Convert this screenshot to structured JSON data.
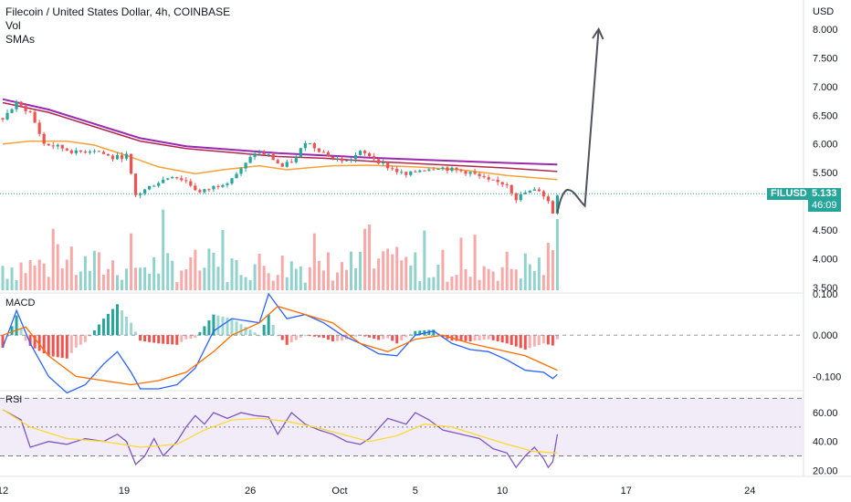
{
  "header": {
    "title": "Filecoin / United States Dollar, 4h, COINBASE",
    "indicator_vol": "Vol",
    "indicator_smas": "SMAs"
  },
  "price_axis": {
    "currency": "USD"
  },
  "price_tag": {
    "symbol": "FILUSD",
    "price": "5.133",
    "countdown": "46:09"
  },
  "panes": {
    "macd_label": "MACD",
    "rsi_label": "RSI"
  },
  "colors": {
    "up": "#26a69a",
    "down": "#ef5350",
    "sma_fast": "#f7a136",
    "sma_mid": "#b2264f",
    "sma_slow": "#9c27b0",
    "macd": "#2962ff",
    "signal": "#ff6d00",
    "rsi": "#7e57c2",
    "rsi_ma": "#fdd835",
    "rsi_band": "#ede7f6",
    "arrow": "#50535e"
  },
  "chart_data": [
    {
      "type": "candlestick",
      "name": "price",
      "x_ticks": [
        "12",
        "19",
        "26",
        "Oct",
        "5",
        "10",
        "17",
        "24"
      ],
      "y_ticks": [
        "8.000",
        "7.500",
        "7.000",
        "6.500",
        "6.000",
        "5.500",
        "5.000",
        "4.500",
        "4.000",
        "3.500"
      ],
      "ylim": [
        3.45,
        8.35
      ],
      "current_price": 5.133,
      "close_path": [
        [
          0,
          6.45
        ],
        [
          3,
          6.7
        ],
        [
          6,
          6.55
        ],
        [
          9,
          6.0
        ],
        [
          12,
          5.95
        ],
        [
          16,
          5.85
        ],
        [
          20,
          5.9
        ],
        [
          24,
          5.75
        ],
        [
          27,
          5.8
        ],
        [
          29,
          5.1
        ],
        [
          33,
          5.3
        ],
        [
          37,
          5.45
        ],
        [
          40,
          5.35
        ],
        [
          43,
          5.15
        ],
        [
          46,
          5.25
        ],
        [
          49,
          5.35
        ],
        [
          52,
          5.55
        ],
        [
          55,
          5.85
        ],
        [
          58,
          5.8
        ],
        [
          61,
          5.6
        ],
        [
          64,
          5.75
        ],
        [
          66,
          6.05
        ],
        [
          69,
          5.9
        ],
        [
          72,
          5.75
        ],
        [
          75,
          5.7
        ],
        [
          78,
          5.85
        ],
        [
          80,
          5.8
        ],
        [
          84,
          5.6
        ],
        [
          88,
          5.45
        ],
        [
          91,
          5.55
        ],
        [
          95,
          5.6
        ],
        [
          98,
          5.55
        ],
        [
          102,
          5.5
        ],
        [
          106,
          5.35
        ],
        [
          110,
          5.3
        ],
        [
          112,
          5.05
        ],
        [
          114,
          5.15
        ],
        [
          117,
          5.2
        ],
        [
          119,
          5.0
        ],
        [
          120,
          4.8
        ],
        [
          121,
          5.133
        ]
      ],
      "n_bars": 122
    },
    {
      "type": "line",
      "name": "SMAs",
      "series": [
        {
          "values": [
            [
              0,
              6.0
            ],
            [
              6,
              6.05
            ],
            [
              14,
              6.05
            ],
            [
              20,
              5.98
            ],
            [
              27,
              5.8
            ],
            [
              34,
              5.6
            ],
            [
              42,
              5.48
            ],
            [
              48,
              5.55
            ],
            [
              56,
              5.62
            ],
            [
              62,
              5.55
            ],
            [
              66,
              5.58
            ],
            [
              72,
              5.62
            ],
            [
              80,
              5.63
            ],
            [
              90,
              5.6
            ],
            [
              100,
              5.55
            ],
            [
              110,
              5.45
            ],
            [
              121,
              5.38
            ]
          ]
        },
        {
          "values": [
            [
              0,
              6.72
            ],
            [
              10,
              6.55
            ],
            [
              20,
              6.3
            ],
            [
              30,
              6.05
            ],
            [
              40,
              5.92
            ],
            [
              50,
              5.85
            ],
            [
              60,
              5.78
            ],
            [
              70,
              5.75
            ],
            [
              80,
              5.7
            ],
            [
              90,
              5.66
            ],
            [
              100,
              5.62
            ],
            [
              110,
              5.58
            ],
            [
              121,
              5.52
            ]
          ]
        },
        {
          "values": [
            [
              0,
              6.78
            ],
            [
              10,
              6.6
            ],
            [
              20,
              6.35
            ],
            [
              30,
              6.1
            ],
            [
              40,
              5.96
            ],
            [
              50,
              5.9
            ],
            [
              60,
              5.84
            ],
            [
              70,
              5.8
            ],
            [
              80,
              5.76
            ],
            [
              90,
              5.73
            ],
            [
              100,
              5.7
            ],
            [
              110,
              5.67
            ],
            [
              121,
              5.64
            ]
          ]
        }
      ]
    },
    {
      "type": "line",
      "name": "projection",
      "values": [
        [
          121,
          4.8
        ],
        [
          123.5,
          5.1
        ],
        [
          127,
          5.0
        ],
        [
          130,
          8.0
        ]
      ]
    },
    {
      "type": "bar",
      "name": "Vol",
      "volume_shape": "random"
    },
    {
      "type": "line",
      "name": "MACD",
      "y_ticks": [
        "0.100",
        "0.000",
        "-0.100"
      ],
      "ylim": [
        -0.13,
        0.1
      ],
      "series": [
        {
          "values": [
            [
              0,
              -0.03
            ],
            [
              3,
              0.06
            ],
            [
              6,
              -0.02
            ],
            [
              10,
              -0.1
            ],
            [
              14,
              -0.14
            ],
            [
              18,
              -0.12
            ],
            [
              22,
              -0.07
            ],
            [
              25,
              -0.04
            ],
            [
              28,
              -0.09
            ],
            [
              30,
              -0.13
            ],
            [
              34,
              -0.13
            ],
            [
              38,
              -0.12
            ],
            [
              42,
              -0.08
            ],
            [
              46,
              0.01
            ],
            [
              50,
              0.04
            ],
            [
              53,
              0.035
            ],
            [
              56,
              0.03
            ],
            [
              58,
              0.1
            ],
            [
              60,
              0.07
            ],
            [
              62,
              0.04
            ],
            [
              66,
              0.05
            ],
            [
              70,
              0.03
            ],
            [
              74,
              0.0
            ],
            [
              78,
              -0.02
            ],
            [
              82,
              -0.045
            ],
            [
              86,
              -0.05
            ],
            [
              90,
              -0.0
            ],
            [
              94,
              0.01
            ],
            [
              98,
              -0.02
            ],
            [
              102,
              -0.035
            ],
            [
              106,
              -0.04
            ],
            [
              110,
              -0.06
            ],
            [
              114,
              -0.085
            ],
            [
              118,
              -0.09
            ],
            [
              120,
              -0.105
            ],
            [
              121,
              -0.095
            ]
          ]
        },
        {
          "values": [
            [
              0,
              0.0
            ],
            [
              5,
              0.02
            ],
            [
              10,
              -0.05
            ],
            [
              16,
              -0.1
            ],
            [
              22,
              -0.11
            ],
            [
              28,
              -0.12
            ],
            [
              34,
              -0.11
            ],
            [
              40,
              -0.09
            ],
            [
              46,
              -0.04
            ],
            [
              50,
              0.0
            ],
            [
              56,
              0.03
            ],
            [
              60,
              0.07
            ],
            [
              66,
              0.05
            ],
            [
              72,
              0.03
            ],
            [
              78,
              -0.02
            ],
            [
              84,
              -0.04
            ],
            [
              90,
              -0.01
            ],
            [
              96,
              0.0
            ],
            [
              102,
              -0.02
            ],
            [
              108,
              -0.035
            ],
            [
              114,
              -0.05
            ],
            [
              118,
              -0.07
            ],
            [
              121,
              -0.085
            ]
          ]
        }
      ],
      "histogram_shape": "macd_minus_signal"
    },
    {
      "type": "line",
      "name": "RSI",
      "y_ticks": [
        "60.00",
        "40.00",
        "20.00"
      ],
      "ylim": [
        17,
        74
      ],
      "band": [
        30,
        70
      ],
      "mid": 50,
      "series": [
        {
          "values": [
            [
              0,
              62
            ],
            [
              4,
              55
            ],
            [
              6,
              36
            ],
            [
              10,
              40
            ],
            [
              14,
              38
            ],
            [
              18,
              42
            ],
            [
              22,
              40
            ],
            [
              25,
              45
            ],
            [
              27,
              40
            ],
            [
              29,
              24
            ],
            [
              31,
              30
            ],
            [
              33,
              42
            ],
            [
              35,
              30
            ],
            [
              38,
              40
            ],
            [
              40,
              50
            ],
            [
              42,
              58
            ],
            [
              44,
              52
            ],
            [
              46,
              60
            ],
            [
              49,
              56
            ],
            [
              52,
              60
            ],
            [
              55,
              58
            ],
            [
              58,
              57
            ],
            [
              60,
              45
            ],
            [
              63,
              60
            ],
            [
              66,
              52
            ],
            [
              69,
              48
            ],
            [
              72,
              45
            ],
            [
              75,
              40
            ],
            [
              78,
              38
            ],
            [
              80,
              42
            ],
            [
              84,
              56
            ],
            [
              88,
              52
            ],
            [
              90,
              60
            ],
            [
              93,
              55
            ],
            [
              96,
              48
            ],
            [
              100,
              45
            ],
            [
              104,
              42
            ],
            [
              107,
              35
            ],
            [
              110,
              32
            ],
            [
              112,
              22
            ],
            [
              114,
              30
            ],
            [
              116,
              36
            ],
            [
              118,
              28
            ],
            [
              119,
              22
            ],
            [
              120,
              26
            ],
            [
              121,
              45
            ]
          ]
        },
        {
          "values": [
            [
              0,
              62
            ],
            [
              6,
              50
            ],
            [
              14,
              42
            ],
            [
              22,
              40
            ],
            [
              30,
              36
            ],
            [
              38,
              38
            ],
            [
              44,
              48
            ],
            [
              50,
              55
            ],
            [
              56,
              56
            ],
            [
              62,
              54
            ],
            [
              68,
              50
            ],
            [
              74,
              45
            ],
            [
              80,
              40
            ],
            [
              86,
              44
            ],
            [
              92,
              52
            ],
            [
              98,
              50
            ],
            [
              104,
              44
            ],
            [
              110,
              38
            ],
            [
              116,
              33
            ],
            [
              121,
              32
            ]
          ]
        }
      ]
    }
  ]
}
